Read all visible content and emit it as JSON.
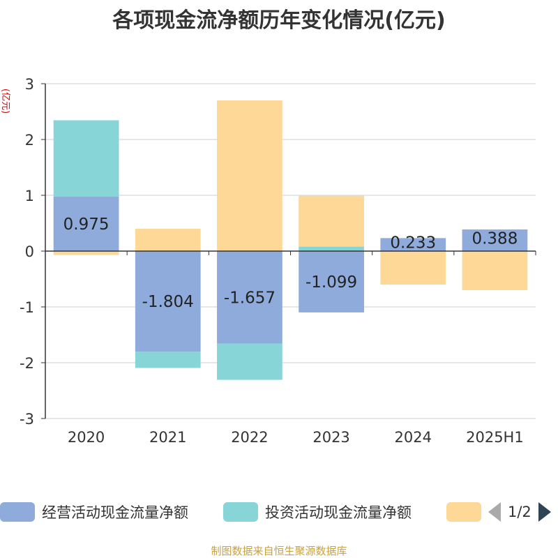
{
  "title": "各项现金流净额历年变化情况(亿元)",
  "chart_data": {
    "type": "bar",
    "stacked": true,
    "categories": [
      "2020",
      "2021",
      "2022",
      "2023",
      "2024",
      "2025H1"
    ],
    "ylabel": "(亿元)",
    "ylim": [
      -3,
      3
    ],
    "yticks": [
      -3,
      -2,
      -1,
      0,
      1,
      2,
      3
    ],
    "grid": true,
    "series": [
      {
        "name": "经营活动现金流量净额",
        "color": "#8eabdb",
        "values": [
          0.975,
          -1.804,
          -1.657,
          -1.099,
          0.233,
          0.388
        ],
        "labels": [
          "0.975",
          "-1.804",
          "-1.657",
          "-1.099",
          "0.233",
          "0.388"
        ]
      },
      {
        "name": "投资活动现金流量净额",
        "color": "#88d5d8",
        "values": [
          1.37,
          -0.29,
          -0.65,
          0.08,
          0,
          0
        ]
      },
      {
        "name": "",
        "color": "#fdd897",
        "values": [
          -0.07,
          0.4,
          2.7,
          0.91,
          -0.6,
          -0.7
        ]
      }
    ],
    "legend_position": "bottom"
  },
  "legend": {
    "page": "1/2"
  },
  "footer": "制图数据来自恒生聚源数据库"
}
